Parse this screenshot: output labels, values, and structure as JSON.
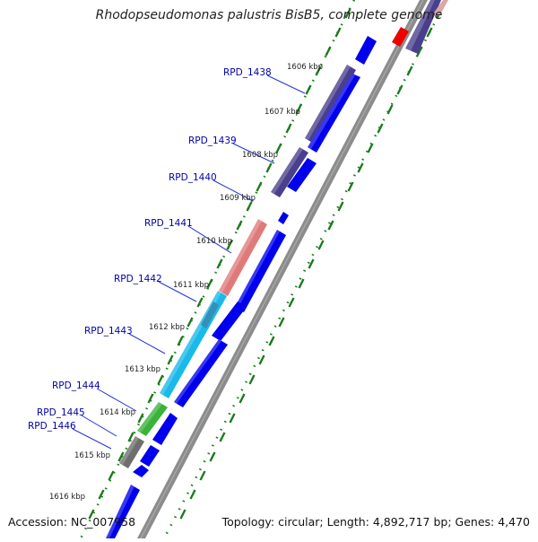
{
  "map": {
    "title": "Rhodopseudomonas palustris BisB5, complete genome",
    "accession_text": "Accession: NC_007958",
    "summary_text": "Topology: circular; Length: 4,892,717 bp; Genes: 4,470"
  },
  "colors": {
    "backbone": "#8c8c8c",
    "forward_gene": "#0000ee",
    "reverse_gene": "#4a3f8c",
    "tick": "#1a7a1a",
    "label": "#0000aa",
    "leader": "#2233dd",
    "scale_text": "#222222"
  },
  "scale_labels": [
    "1606 kbp",
    "1607 kbp",
    "1608 kbp",
    "1609 kbp",
    "1610 kbp",
    "1611 kbp",
    "1612 kbp",
    "1613 kbp",
    "1614 kbp",
    "1615 kbp",
    "1616 kbp"
  ],
  "gene_labels": [
    "RPD_1438",
    "RPD_1439",
    "RPD_1440",
    "RPD_1441",
    "RPD_1442",
    "RPD_1443",
    "RPD_1444",
    "RPD_1445",
    "RPD_1446"
  ]
}
